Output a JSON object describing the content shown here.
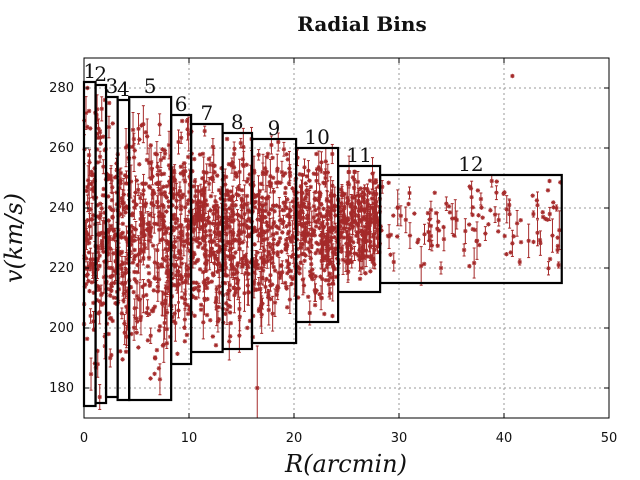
{
  "chart_data": {
    "type": "scatter",
    "title": "Radial Bins",
    "xlabel": "R(arcmin)",
    "ylabel": "v(km/s)",
    "xlim": [
      0,
      50
    ],
    "ylim": [
      170,
      290
    ],
    "xticks": [
      0,
      10,
      20,
      30,
      40,
      50
    ],
    "yticks": [
      180,
      200,
      220,
      240,
      260,
      280
    ],
    "grid": true,
    "point_color": "#a52a2a",
    "bins": [
      {
        "label": "1",
        "r_min": 0.0,
        "r_max": 1.1,
        "v_min": 174,
        "v_max": 282
      },
      {
        "label": "2",
        "r_min": 1.1,
        "r_max": 2.1,
        "v_min": 175,
        "v_max": 281
      },
      {
        "label": "3",
        "r_min": 2.1,
        "r_max": 3.2,
        "v_min": 177,
        "v_max": 277
      },
      {
        "label": "4",
        "r_min": 3.2,
        "r_max": 4.3,
        "v_min": 176,
        "v_max": 276
      },
      {
        "label": "5",
        "r_min": 4.3,
        "r_max": 8.3,
        "v_min": 176,
        "v_max": 277
      },
      {
        "label": "6",
        "r_min": 8.3,
        "r_max": 10.2,
        "v_min": 188,
        "v_max": 271
      },
      {
        "label": "7",
        "r_min": 10.2,
        "r_max": 13.2,
        "v_min": 192,
        "v_max": 268
      },
      {
        "label": "8",
        "r_min": 13.2,
        "r_max": 16.0,
        "v_min": 193,
        "v_max": 265
      },
      {
        "label": "9",
        "r_min": 16.0,
        "r_max": 20.2,
        "v_min": 195,
        "v_max": 263
      },
      {
        "label": "10",
        "r_min": 20.2,
        "r_max": 24.2,
        "v_min": 202,
        "v_max": 260
      },
      {
        "label": "11",
        "r_min": 24.2,
        "r_max": 28.2,
        "v_min": 212,
        "v_max": 254
      },
      {
        "label": "12",
        "r_min": 28.2,
        "r_max": 45.5,
        "v_min": 215,
        "v_max": 251
      }
    ],
    "points": [
      {
        "x": 40.8,
        "y": 284,
        "err": 0
      },
      {
        "x": 1.2,
        "y": 271,
        "err": 2
      },
      {
        "x": 2.0,
        "y": 276,
        "err": 0
      },
      {
        "x": 16.5,
        "y": 180,
        "err": 14
      },
      {
        "x": 0.5,
        "y": 248,
        "err": 8
      },
      {
        "x": 2.5,
        "y": 190,
        "err": 3
      },
      {
        "x": 6.2,
        "y": 255,
        "err": 5
      },
      {
        "x": 7.5,
        "y": 208,
        "err": 4
      },
      {
        "x": 9.0,
        "y": 262,
        "err": 4
      },
      {
        "x": 11.4,
        "y": 252,
        "err": 5
      },
      {
        "x": 12.6,
        "y": 210,
        "err": 4
      },
      {
        "x": 14.3,
        "y": 258,
        "err": 4
      },
      {
        "x": 17.6,
        "y": 206,
        "err": 5
      },
      {
        "x": 18.5,
        "y": 262,
        "err": 3
      },
      {
        "x": 21.5,
        "y": 205,
        "err": 4
      },
      {
        "x": 23.0,
        "y": 250,
        "err": 3
      },
      {
        "x": 25.5,
        "y": 222,
        "err": 2
      },
      {
        "x": 27.0,
        "y": 246,
        "err": 2
      },
      {
        "x": 29.5,
        "y": 222,
        "err": 3
      },
      {
        "x": 31.0,
        "y": 245,
        "err": 2
      },
      {
        "x": 32.8,
        "y": 232,
        "err": 3
      },
      {
        "x": 34.0,
        "y": 220,
        "err": 2
      },
      {
        "x": 35.5,
        "y": 236,
        "err": 3
      },
      {
        "x": 36.2,
        "y": 226,
        "err": 2
      },
      {
        "x": 37.8,
        "y": 243,
        "err": 2
      },
      {
        "x": 39.5,
        "y": 236,
        "err": 2
      },
      {
        "x": 40.5,
        "y": 241,
        "err": 2
      },
      {
        "x": 41.5,
        "y": 222,
        "err": 1
      },
      {
        "x": 42.8,
        "y": 238,
        "err": 1
      },
      {
        "x": 45.0,
        "y": 240,
        "err": 1
      },
      {
        "x": 45.1,
        "y": 226,
        "err": 1
      },
      {
        "x": 45.2,
        "y": 221,
        "err": 1
      }
    ]
  }
}
